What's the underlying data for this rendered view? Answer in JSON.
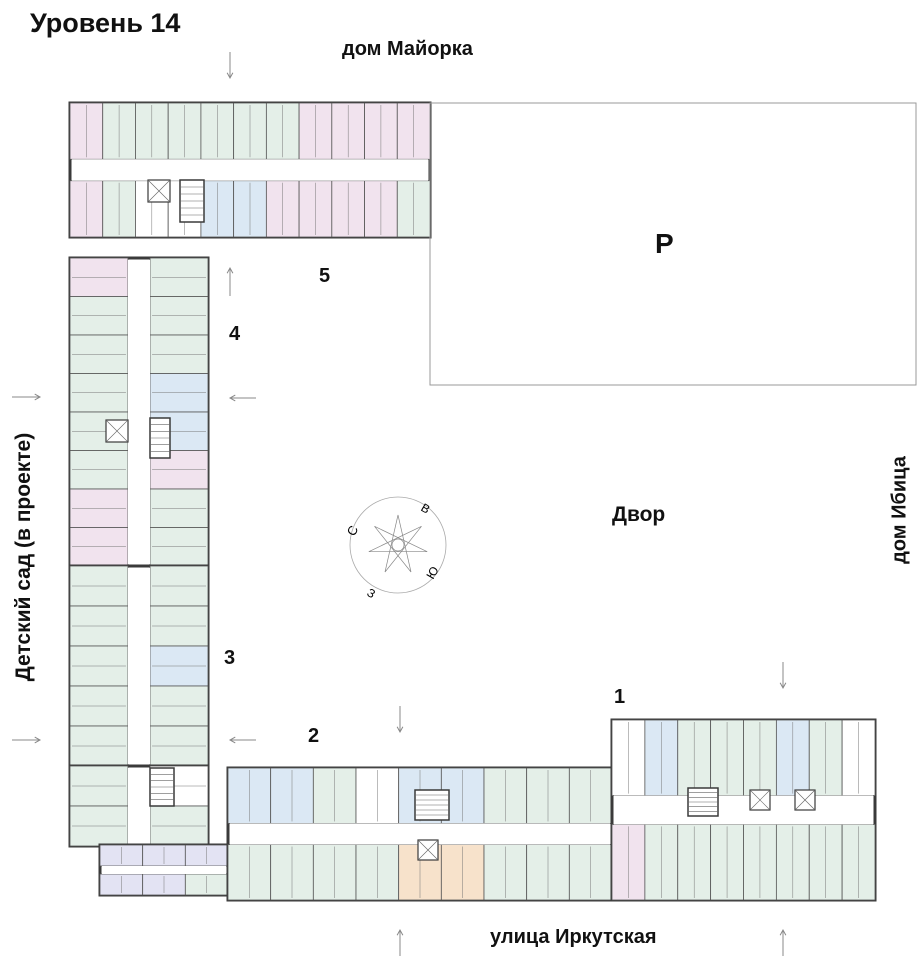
{
  "title": "Уровень 14",
  "labels": {
    "north_neighbor": "дом Майорка",
    "east_neighbor": "дом Ибица",
    "west_neighbor": "Детский сад (в проекте)",
    "street": "улица Иркутская",
    "courtyard": "Двор",
    "parking": "Р"
  },
  "sections": [
    "1",
    "2",
    "3",
    "4",
    "5"
  ],
  "compass": {
    "north": "С",
    "east": "В",
    "south": "Ю",
    "west": "З"
  },
  "colors": {
    "apartment_green": "#e4efe8",
    "apartment_pink": "#f1e3ee",
    "apartment_blue": "#dbe8f4",
    "apartment_orange": "#f7e2cb",
    "apartment_lilac": "#e3e3f3",
    "wall": "#3a3a3a"
  }
}
